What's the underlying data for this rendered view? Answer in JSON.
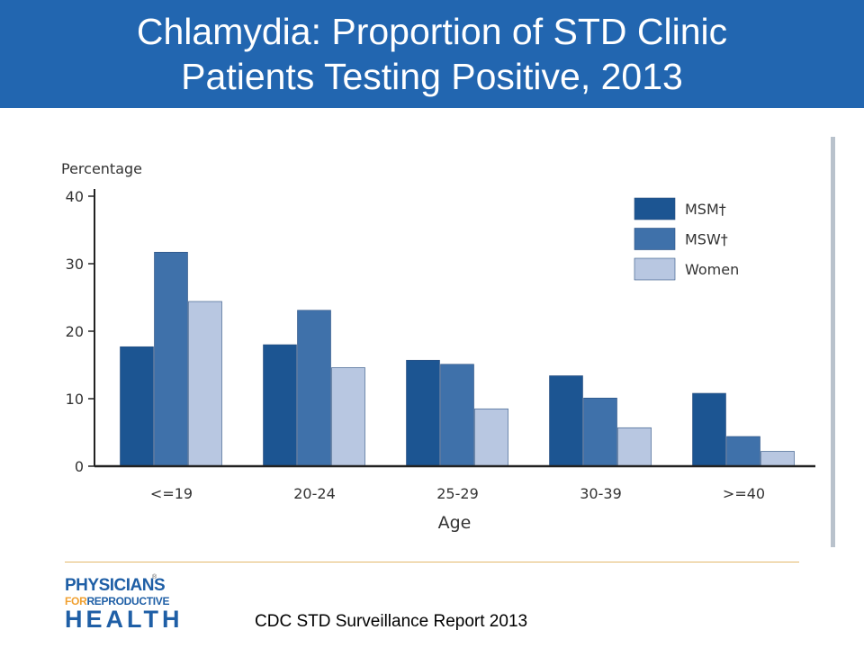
{
  "slide": {
    "title_line_1": "Chlamydia: Proportion of STD Clinic",
    "title_line_2": "Patients Testing Positive, 2013",
    "source": "CDC STD Surveillance Report 2013",
    "logo": {
      "line1": "PHYSICIANS",
      "line2_for": "FOR",
      "line2_rest": "REPRODUCTIVE",
      "line3": "HEALTH",
      "registered": "®"
    },
    "colors": {
      "title_bar": "#2266b0",
      "logo": "#1f5fa6",
      "logo_accent": "#f0a030"
    }
  },
  "chart_data": {
    "type": "bar",
    "title": "",
    "xlabel": "Age",
    "ylabel": "Percentage",
    "ylim": [
      0,
      40
    ],
    "yticks": [
      0,
      10,
      20,
      30,
      40
    ],
    "grid": false,
    "legend_position": "top-right",
    "categories": [
      "<=19",
      "20-24",
      "25-29",
      "30-39",
      ">=40"
    ],
    "series": [
      {
        "name": "MSM†",
        "color": "#1c5592",
        "values": [
          17.7,
          18.0,
          15.7,
          13.4,
          10.8
        ]
      },
      {
        "name": "MSW†",
        "color": "#3f71aa",
        "values": [
          31.7,
          23.1,
          15.1,
          10.1,
          4.4
        ]
      },
      {
        "name": "Women",
        "color": "#b8c7e1",
        "values": [
          24.4,
          14.6,
          8.5,
          5.7,
          2.2
        ]
      }
    ]
  }
}
